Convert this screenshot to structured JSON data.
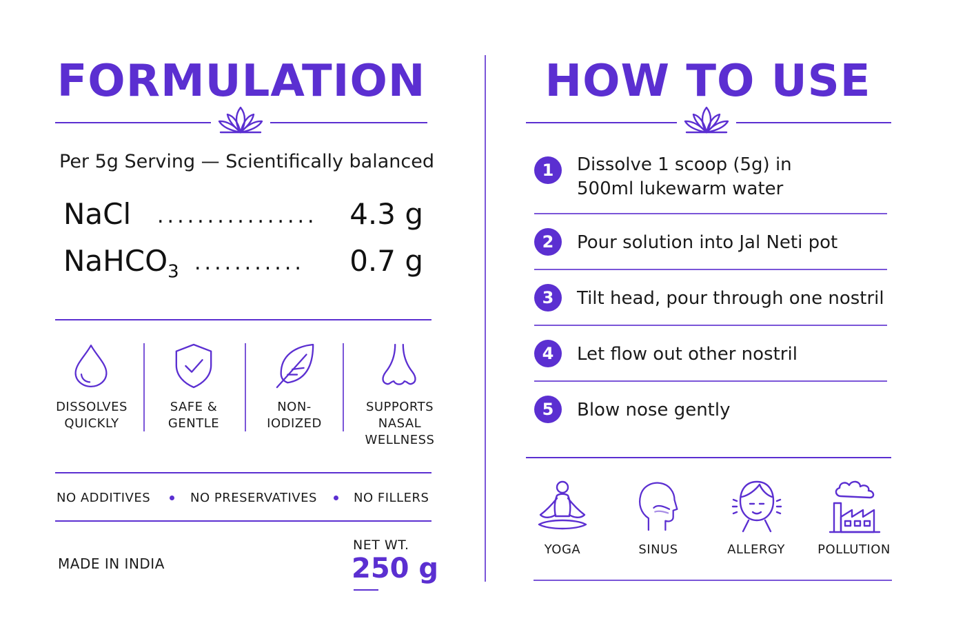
{
  "formulation": {
    "title": "FORMULATION",
    "subtitle": "Per 5g Serving — Scientifically balanced",
    "ingredients": [
      {
        "name": "NaCl",
        "dots": "................",
        "value": "4.3 g"
      },
      {
        "name": "NaHCO",
        "sub": "3",
        "dots": "...........",
        "value": "0.7 g"
      }
    ],
    "features": [
      {
        "icon": "water-drop-icon",
        "line1": "DISSOLVES",
        "line2": "QUICKLY"
      },
      {
        "icon": "shield-check-icon",
        "line1": "SAFE &",
        "line2": "GENTLE"
      },
      {
        "icon": "leaf-icon",
        "line1": "NON-",
        "line2": "IODIZED"
      },
      {
        "icon": "nose-icon",
        "line1": "SUPPORTS",
        "line2": "NASAL",
        "line3": "WELLNESS"
      }
    ],
    "claims": [
      "NO ADDITIVES",
      "NO PRESERVATIVES",
      "NO FILLERS"
    ],
    "made_in": "MADE IN INDIA",
    "net_weight_label": "NET WT.",
    "net_weight_value": "250 g"
  },
  "how_to_use": {
    "title": "HOW TO USE",
    "steps": [
      {
        "number": "1",
        "line1": "Dissolve 1 scoop (5g) in",
        "line2": "500ml lukewarm water"
      },
      {
        "number": "2",
        "line1": "Pour solution into Jal Neti pot"
      },
      {
        "number": "3",
        "line1": "Tilt head, pour through one nostril"
      },
      {
        "number": "4",
        "line1": "Let flow out other nostril"
      },
      {
        "number": "5",
        "line1": "Blow nose gently"
      }
    ],
    "uses": [
      {
        "icon": "yoga-icon",
        "label": "YOGA"
      },
      {
        "icon": "sinus-icon",
        "label": "SINUS"
      },
      {
        "icon": "allergy-icon",
        "label": "ALLERGY"
      },
      {
        "icon": "pollution-icon",
        "label": "POLLUTION"
      }
    ]
  },
  "colors": {
    "accent": "#5b2fd1",
    "text": "#1b1b1b",
    "background": "#ffffff"
  }
}
